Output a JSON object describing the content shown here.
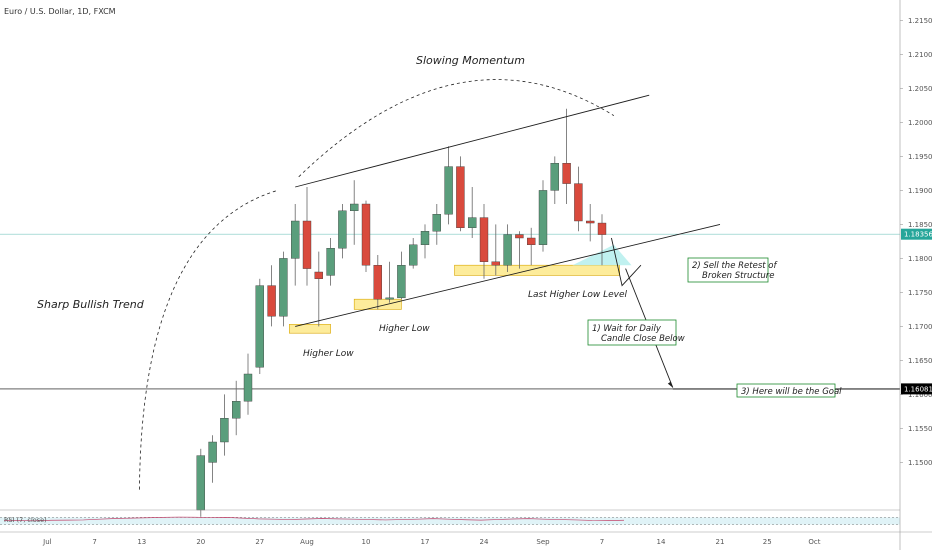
{
  "header": {
    "symbol_title": "Euro / U.S. Dollar, 1D, FXCM"
  },
  "chart_data": {
    "type": "candlestick",
    "ylim": [
      1.143,
      1.218
    ],
    "x_range": [
      0,
      80
    ],
    "y_ticks": [
      1.215,
      1.21,
      1.205,
      1.2,
      1.195,
      1.19,
      1.185,
      1.18,
      1.175,
      1.17,
      1.165,
      1.16,
      1.155,
      1.15
    ],
    "y_tick_labels": [
      "1.21500",
      "1.21000",
      "1.20500",
      "1.20000",
      "1.19500",
      "1.19000",
      "1.18500",
      "1.18000",
      "1.17500",
      "1.17000",
      "1.16500",
      "1.16000",
      "1.15500",
      "1.15000"
    ],
    "x_ticks": [
      {
        "label": "Jul",
        "x": 3
      },
      {
        "label": "7",
        "x": 7
      },
      {
        "label": "13",
        "x": 11
      },
      {
        "label": "20",
        "x": 16
      },
      {
        "label": "27",
        "x": 21
      },
      {
        "label": "Aug",
        "x": 25
      },
      {
        "label": "10",
        "x": 30
      },
      {
        "label": "17",
        "x": 35
      },
      {
        "label": "24",
        "x": 40
      },
      {
        "label": "Sep",
        "x": 45
      },
      {
        "label": "7",
        "x": 50
      },
      {
        "label": "14",
        "x": 55
      },
      {
        "label": "21",
        "x": 60
      },
      {
        "label": "25",
        "x": 64
      },
      {
        "label": "Oct",
        "x": 68
      }
    ],
    "candles": [
      {
        "x": 16,
        "o": 1.143,
        "h": 1.152,
        "l": 1.142,
        "c": 1.151
      },
      {
        "x": 17,
        "o": 1.15,
        "h": 1.154,
        "l": 1.147,
        "c": 1.153
      },
      {
        "x": 18,
        "o": 1.153,
        "h": 1.16,
        "l": 1.151,
        "c": 1.1565
      },
      {
        "x": 19,
        "o": 1.1565,
        "h": 1.162,
        "l": 1.154,
        "c": 1.159
      },
      {
        "x": 20,
        "o": 1.159,
        "h": 1.166,
        "l": 1.157,
        "c": 1.163
      },
      {
        "x": 21,
        "o": 1.164,
        "h": 1.177,
        "l": 1.163,
        "c": 1.176
      },
      {
        "x": 22,
        "o": 1.176,
        "h": 1.179,
        "l": 1.17,
        "c": 1.1715
      },
      {
        "x": 23,
        "o": 1.1715,
        "h": 1.181,
        "l": 1.17,
        "c": 1.18
      },
      {
        "x": 24,
        "o": 1.18,
        "h": 1.188,
        "l": 1.176,
        "c": 1.1855
      },
      {
        "x": 25,
        "o": 1.1855,
        "h": 1.1905,
        "l": 1.176,
        "c": 1.1785
      },
      {
        "x": 26,
        "o": 1.178,
        "h": 1.181,
        "l": 1.17,
        "c": 1.177
      },
      {
        "x": 27,
        "o": 1.1775,
        "h": 1.183,
        "l": 1.176,
        "c": 1.1815
      },
      {
        "x": 28,
        "o": 1.1815,
        "h": 1.188,
        "l": 1.18,
        "c": 1.187
      },
      {
        "x": 29,
        "o": 1.187,
        "h": 1.1915,
        "l": 1.182,
        "c": 1.188
      },
      {
        "x": 30,
        "o": 1.188,
        "h": 1.1885,
        "l": 1.178,
        "c": 1.179
      },
      {
        "x": 31,
        "o": 1.179,
        "h": 1.1805,
        "l": 1.1725,
        "c": 1.174
      },
      {
        "x": 32,
        "o": 1.174,
        "h": 1.1795,
        "l": 1.1735,
        "c": 1.1742
      },
      {
        "x": 33,
        "o": 1.1742,
        "h": 1.181,
        "l": 1.174,
        "c": 1.179
      },
      {
        "x": 34,
        "o": 1.179,
        "h": 1.183,
        "l": 1.1785,
        "c": 1.182
      },
      {
        "x": 35,
        "o": 1.182,
        "h": 1.185,
        "l": 1.18,
        "c": 1.184
      },
      {
        "x": 36,
        "o": 1.184,
        "h": 1.188,
        "l": 1.182,
        "c": 1.1865
      },
      {
        "x": 37,
        "o": 1.1865,
        "h": 1.1965,
        "l": 1.185,
        "c": 1.1935
      },
      {
        "x": 38,
        "o": 1.1935,
        "h": 1.195,
        "l": 1.184,
        "c": 1.1845
      },
      {
        "x": 39,
        "o": 1.1845,
        "h": 1.1905,
        "l": 1.183,
        "c": 1.186
      },
      {
        "x": 40,
        "o": 1.186,
        "h": 1.188,
        "l": 1.177,
        "c": 1.1795
      },
      {
        "x": 41,
        "o": 1.1795,
        "h": 1.185,
        "l": 1.1775,
        "c": 1.179
      },
      {
        "x": 42,
        "o": 1.179,
        "h": 1.185,
        "l": 1.178,
        "c": 1.1835
      },
      {
        "x": 43,
        "o": 1.1835,
        "h": 1.184,
        "l": 1.1785,
        "c": 1.183
      },
      {
        "x": 44,
        "o": 1.183,
        "h": 1.1845,
        "l": 1.179,
        "c": 1.182
      },
      {
        "x": 45,
        "o": 1.182,
        "h": 1.1915,
        "l": 1.181,
        "c": 1.19
      },
      {
        "x": 46,
        "o": 1.19,
        "h": 1.195,
        "l": 1.188,
        "c": 1.194
      },
      {
        "x": 47,
        "o": 1.194,
        "h": 1.202,
        "l": 1.188,
        "c": 1.191
      },
      {
        "x": 48,
        "o": 1.191,
        "h": 1.1935,
        "l": 1.184,
        "c": 1.1855
      },
      {
        "x": 49,
        "o": 1.1855,
        "h": 1.188,
        "l": 1.1825,
        "c": 1.1852
      },
      {
        "x": 50,
        "o": 1.1852,
        "h": 1.1865,
        "l": 1.179,
        "c": 1.1835
      }
    ],
    "price_lines": [
      {
        "value": 1.18356,
        "label": "1.18356",
        "color": "#26a69a"
      },
      {
        "value": 1.16081,
        "label": "1.16081",
        "color": "#000000"
      }
    ],
    "trendlines": [
      {
        "name": "upper-channel-line",
        "p1": [
          24,
          1.1905
        ],
        "p2": [
          54,
          1.204
        ]
      },
      {
        "name": "lower-channel-line",
        "p1": [
          24,
          1.17
        ],
        "p2": [
          60,
          1.185
        ]
      },
      {
        "name": "target-arrow-line",
        "p1": [
          52,
          1.1785
        ],
        "p2": [
          56,
          1.161
        ]
      }
    ],
    "zones": [
      {
        "name": "higher-low-zone-1",
        "x0": 23.5,
        "x1": 27,
        "y0": 1.169,
        "y1": 1.1703
      },
      {
        "name": "higher-low-zone-2",
        "x0": 29,
        "x1": 33,
        "y0": 1.1725,
        "y1": 1.174
      },
      {
        "name": "last-higher-low-zone",
        "x0": 37.5,
        "x1": 51.5,
        "y0": 1.1775,
        "y1": 1.179
      }
    ],
    "annotations": {
      "slowing_momentum": "Slowing Momentum",
      "sharp_bullish_trend": "Sharp Bullish Trend",
      "higher_low_1": "Higher Low",
      "higher_low_2": "Higher Low",
      "last_higher_low": "Last Higher Low Level",
      "sell_retest_line1": "2) Sell the Retest of",
      "sell_retest_line2": "Broken Structure",
      "wait_close_line1": "1) Wait for Daily",
      "wait_close_line2": "Candle Close Below",
      "goal": "3) Here will be the Goal"
    },
    "indicator": {
      "label": "RSI (7, close)",
      "ylim": [
        0,
        100
      ],
      "levels": [
        30,
        70
      ],
      "values": [
        52,
        53,
        51,
        54,
        55,
        56,
        60,
        64,
        66,
        68,
        70,
        72,
        71,
        69,
        70,
        66,
        62,
        60,
        58,
        61,
        64,
        62,
        60,
        58,
        56,
        58,
        60,
        63,
        60,
        57,
        55,
        58,
        61,
        63,
        60,
        58,
        56,
        53,
        52,
        54
      ]
    }
  },
  "colors": {
    "bull": "#5a9e7c",
    "bear": "#d94a3d",
    "zone_fill": "#fde98a",
    "zone_stroke": "#d9a600",
    "retest_fill": "#b9f0ee",
    "note_border": "#1c8a2d",
    "line": "#1e1e1e"
  }
}
